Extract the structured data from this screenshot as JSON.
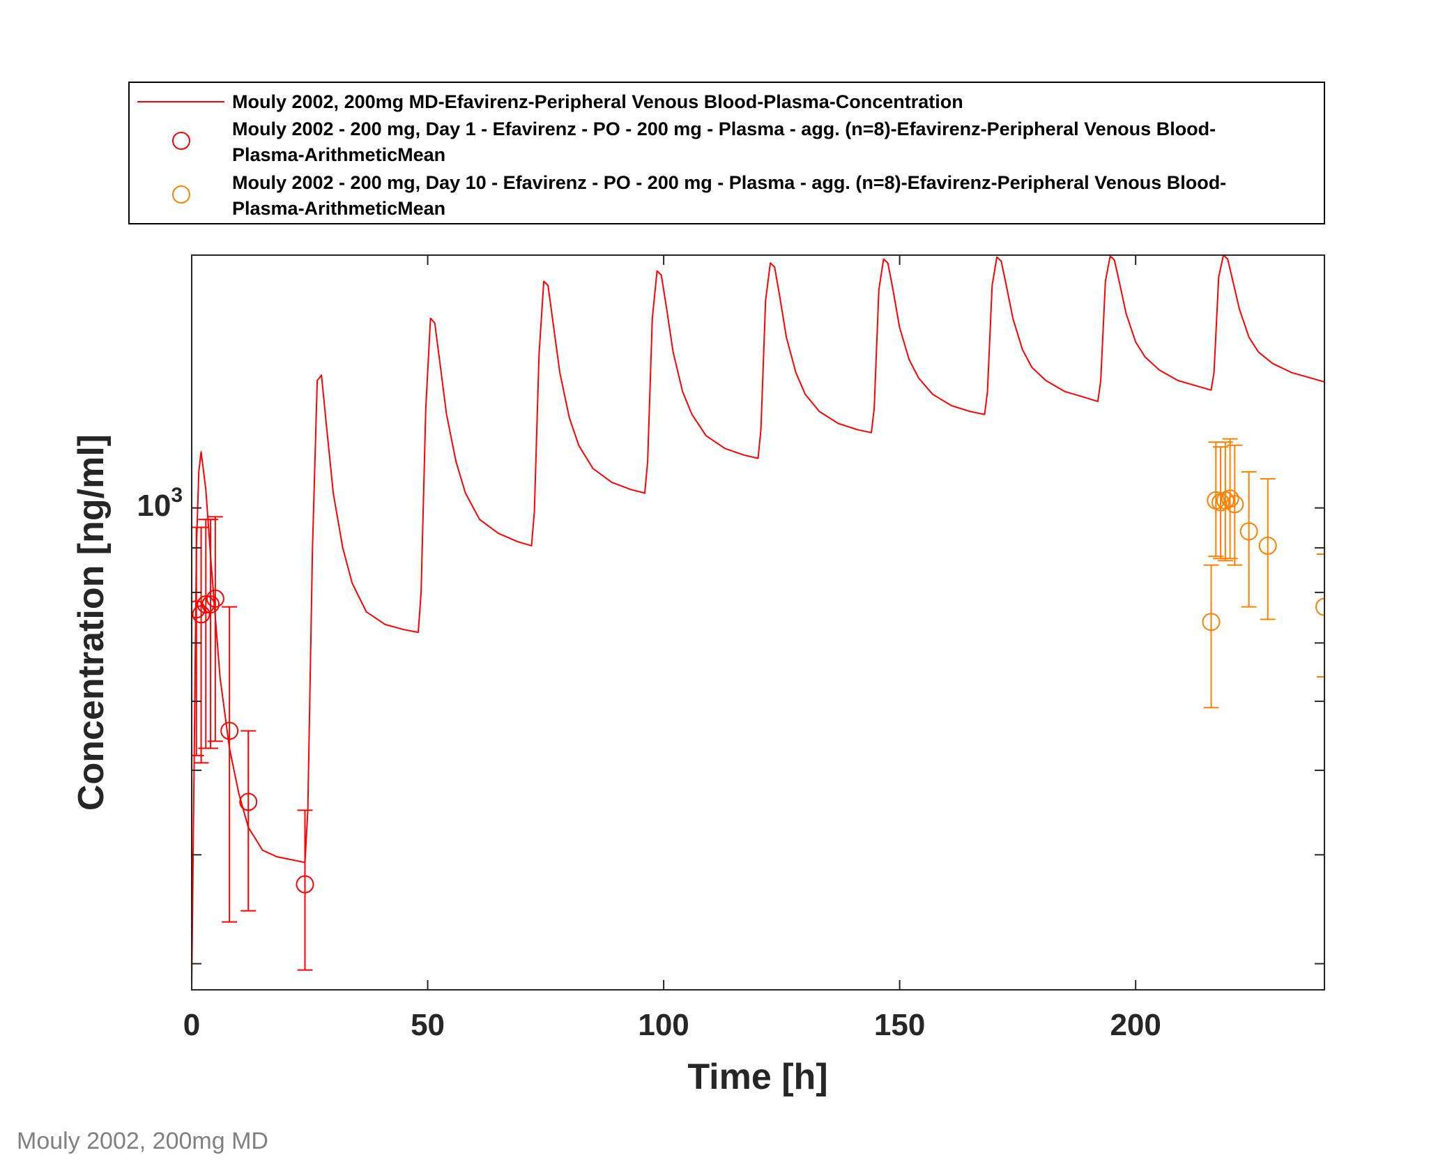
{
  "chart_data": {
    "type": "line",
    "xlabel": "Time [h]",
    "ylabel": "Concentration [ng/ml]",
    "xlim": [
      0,
      240
    ],
    "ylim": [
      280,
      1950
    ],
    "yscale": "log",
    "xticks": [
      0,
      50,
      100,
      150,
      200
    ],
    "xtick_labels": [
      "0",
      "50",
      "100",
      "150",
      "200"
    ],
    "ytick_label": {
      "base": "10",
      "exponent": "3",
      "value": 1000
    },
    "grid": false,
    "legend_position": "top (above plot)",
    "series": [
      {
        "name": "Mouly 2002, 200mg MD-Efavirenz-Peripheral Venous Blood-Plasma-Concentration",
        "kind": "line",
        "color": "#ff0000",
        "x": [
          0,
          1.0,
          1.5,
          2.0,
          3.0,
          4.0,
          6.0,
          8.0,
          10.0,
          12.0,
          15.0,
          18.0,
          21.0,
          24.0,
          24.6,
          25.6,
          26.6,
          27.5,
          28.5,
          30.0,
          32.0,
          34.0,
          37.0,
          41.0,
          45.0,
          48.0,
          48.6,
          49.6,
          50.6,
          51.5,
          52.5,
          54.0,
          56.0,
          58.0,
          61.0,
          65.0,
          69.0,
          72.0,
          72.6,
          73.6,
          74.6,
          75.5,
          76.5,
          78.0,
          80.0,
          82.0,
          85.0,
          89.0,
          93.0,
          96.0,
          96.6,
          97.6,
          98.6,
          99.5,
          100.5,
          102.0,
          104.0,
          106.0,
          109.0,
          113.0,
          117.0,
          120.0,
          120.6,
          121.6,
          122.6,
          123.5,
          124.5,
          126.0,
          128.0,
          130.0,
          133.0,
          137.0,
          141.0,
          144.0,
          144.6,
          145.6,
          146.6,
          147.5,
          148.5,
          150.0,
          152.0,
          154.0,
          157.0,
          161.0,
          165.0,
          168.0,
          168.6,
          169.6,
          170.6,
          171.5,
          172.5,
          174.0,
          176.0,
          178.0,
          181.0,
          185.0,
          189.0,
          192.0,
          192.6,
          193.6,
          194.6,
          195.5,
          196.5,
          198.0,
          200.0,
          202.0,
          205.0,
          209.0,
          213.0,
          216.0,
          216.6,
          217.6,
          218.6,
          219.5,
          220.5,
          222.0,
          224.0,
          226.0,
          229.0,
          233.0,
          237.0,
          240.0
        ],
        "y": [
          280,
          900,
          1100,
          1160,
          1050,
          880,
          640,
          530,
          470,
          430,
          405,
          398,
          395,
          392,
          450,
          900,
          1400,
          1420,
          1250,
          1040,
          900,
          820,
          760,
          735,
          725,
          720,
          800,
          1300,
          1650,
          1630,
          1480,
          1280,
          1130,
          1040,
          970,
          935,
          915,
          905,
          990,
          1500,
          1820,
          1800,
          1640,
          1430,
          1270,
          1180,
          1110,
          1070,
          1050,
          1040,
          1130,
          1650,
          1870,
          1850,
          1710,
          1510,
          1360,
          1280,
          1210,
          1170,
          1150,
          1140,
          1230,
          1730,
          1910,
          1890,
          1760,
          1570,
          1430,
          1350,
          1290,
          1250,
          1230,
          1220,
          1300,
          1780,
          1930,
          1910,
          1790,
          1610,
          1480,
          1410,
          1350,
          1310,
          1290,
          1280,
          1360,
          1800,
          1940,
          1920,
          1810,
          1650,
          1520,
          1450,
          1400,
          1360,
          1340,
          1325,
          1400,
          1820,
          1945,
          1925,
          1820,
          1670,
          1550,
          1490,
          1440,
          1400,
          1380,
          1365,
          1430,
          1840,
          1950,
          1930,
          1830,
          1690,
          1570,
          1510,
          1465,
          1430,
          1410,
          1395
        ]
      },
      {
        "name": "Mouly 2002 - 200 mg, Day 1 - Efavirenz - PO - 200 mg - Plasma - agg. (n=8)-Efavirenz-Peripheral Venous Blood-Plasma-ArithmeticMean",
        "kind": "scatter",
        "color": "#ff0000",
        "x": [
          1,
          2,
          3,
          4,
          5,
          8,
          12,
          24
        ],
        "y": [
          765,
          755,
          775,
          775,
          787,
          555,
          460,
          370
        ],
        "err_low": [
          245,
          245,
          245,
          245,
          247,
          220,
          115,
          75
        ],
        "err_high": [
          185,
          195,
          195,
          195,
          190,
          215,
          95,
          80
        ]
      },
      {
        "name": "Mouly 2002 - 200 mg, Day 10 - Efavirenz - PO - 200 mg - Plasma - agg. (n=8)-Efavirenz-Peripheral Venous Blood-Plasma-ArithmeticMean",
        "kind": "scatter",
        "color": "#ff8000",
        "x": [
          216,
          217,
          218,
          219,
          220,
          221,
          224,
          228,
          240
        ],
        "y": [
          740,
          1020,
          1015,
          1020,
          1025,
          1010,
          940,
          905,
          770
        ],
        "err_low": [
          150,
          140,
          140,
          150,
          150,
          150,
          170,
          160,
          130
        ],
        "err_high": [
          120,
          170,
          160,
          170,
          175,
          170,
          160,
          175,
          115
        ]
      }
    ]
  },
  "footnote": "Mouly 2002, 200mg MD"
}
